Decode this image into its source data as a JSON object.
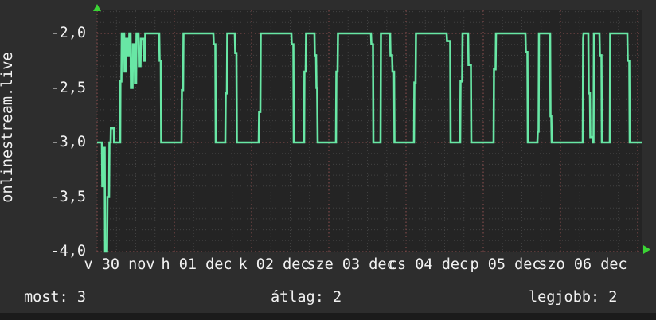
{
  "panel": {
    "y_axis_title": "onlinestream.live",
    "stats": {
      "most": {
        "label": "most",
        "value": "3",
        "text": "most: 3"
      },
      "atlag": {
        "label": "átlag",
        "value": "2",
        "text": "átlag: 2"
      },
      "legjobb": {
        "label": "legjobb",
        "value": "2",
        "text": "legjobb: 2"
      }
    },
    "colors": {
      "outer_bg": "#2d2d2d",
      "plot_bg": "#242424",
      "bottom_bar": "#1b1b1b",
      "text": "#f2f2f2",
      "series_green": "#68e7a5",
      "axis_arrow_green": "#3bd435",
      "grid_major_red": "#8f4f4f",
      "grid_minor_gray": "#414141"
    },
    "icons": [
      "y-axis-end-arrow-icon",
      "x-axis-end-arrow-icon"
    ]
  },
  "chart_data": {
    "type": "line",
    "title": "",
    "ylabel": "onlinestream.live",
    "xlabel": "",
    "legend": "none",
    "grid": {
      "on": true,
      "y_major_step": 0.5,
      "y_minor_step": 0.1,
      "x_major_step_days": 1,
      "x_minor_step_days": 0.25
    },
    "ylim": [
      -4.0,
      -1.79
    ],
    "xlim_days": [
      0,
      7.05
    ],
    "y_ticks": {
      "values": [
        -2.0,
        -2.5,
        -3.0,
        -3.5,
        -4.0
      ],
      "labels": [
        "-2,0",
        "-2,5",
        "-3,0",
        "-3,5",
        "-4,0"
      ]
    },
    "x_ticks": {
      "labels": [
        "v 30 nov",
        "h 01 dec",
        "k 02 dec",
        "sze 03 dec",
        "cs 04 dec",
        "p 05 dec",
        "szo 06 dec"
      ],
      "day_values": [
        0,
        1,
        2,
        3,
        4,
        5,
        6
      ]
    },
    "stats": {
      "most": 3,
      "atlag": 2,
      "legjobb": 2
    },
    "series": [
      {
        "name": "onlinestream.live",
        "color": "#68e7a5",
        "points": [
          [
            0.0,
            -3
          ],
          [
            0.062,
            -3
          ],
          [
            0.067,
            -3.4
          ],
          [
            0.082,
            -3.4
          ],
          [
            0.088,
            -3.05
          ],
          [
            0.098,
            -3.05
          ],
          [
            0.103,
            -4
          ],
          [
            0.129,
            -4
          ],
          [
            0.134,
            -3.5
          ],
          [
            0.155,
            -3.5
          ],
          [
            0.16,
            -3
          ],
          [
            0.175,
            -3
          ],
          [
            0.178,
            -2.87
          ],
          [
            0.216,
            -2.87
          ],
          [
            0.22,
            -3
          ],
          [
            0.299,
            -3
          ],
          [
            0.302,
            -2.44
          ],
          [
            0.314,
            -2.44
          ],
          [
            0.32,
            -2
          ],
          [
            0.351,
            -2
          ],
          [
            0.356,
            -2.35
          ],
          [
            0.371,
            -2.35
          ],
          [
            0.376,
            -2.05
          ],
          [
            0.392,
            -2.05
          ],
          [
            0.397,
            -2.2
          ],
          [
            0.412,
            -2.2
          ],
          [
            0.418,
            -2
          ],
          [
            0.433,
            -2
          ],
          [
            0.438,
            -2.5
          ],
          [
            0.459,
            -2.5
          ],
          [
            0.464,
            -2.1
          ],
          [
            0.485,
            -2.1
          ],
          [
            0.49,
            -2.45
          ],
          [
            0.505,
            -2.45
          ],
          [
            0.51,
            -2
          ],
          [
            0.536,
            -2
          ],
          [
            0.541,
            -2.3
          ],
          [
            0.562,
            -2.3
          ],
          [
            0.567,
            -2.05
          ],
          [
            0.598,
            -2.05
          ],
          [
            0.603,
            -2.25
          ],
          [
            0.619,
            -2.25
          ],
          [
            0.624,
            -2
          ],
          [
            0.804,
            -2
          ],
          [
            0.809,
            -2.25
          ],
          [
            0.825,
            -2.25
          ],
          [
            0.83,
            -3
          ],
          [
            1.093,
            -3
          ],
          [
            1.098,
            -2.52
          ],
          [
            1.113,
            -2.52
          ],
          [
            1.119,
            -2
          ],
          [
            1.505,
            -2
          ],
          [
            1.51,
            -2.1
          ],
          [
            1.531,
            -2.1
          ],
          [
            1.536,
            -3
          ],
          [
            1.66,
            -3
          ],
          [
            1.665,
            -2.55
          ],
          [
            1.68,
            -2.55
          ],
          [
            1.686,
            -2
          ],
          [
            1.784,
            -2
          ],
          [
            1.789,
            -2.18
          ],
          [
            1.804,
            -2.18
          ],
          [
            1.809,
            -3
          ],
          [
            2.093,
            -3
          ],
          [
            2.098,
            -2.72
          ],
          [
            2.113,
            -2.72
          ],
          [
            2.119,
            -2
          ],
          [
            2.515,
            -2
          ],
          [
            2.52,
            -2.1
          ],
          [
            2.541,
            -2.1
          ],
          [
            2.546,
            -3
          ],
          [
            2.68,
            -3
          ],
          [
            2.685,
            -2.35
          ],
          [
            2.701,
            -2.35
          ],
          [
            2.706,
            -2
          ],
          [
            2.814,
            -2
          ],
          [
            2.819,
            -2.2
          ],
          [
            2.835,
            -2.2
          ],
          [
            2.84,
            -2.5
          ],
          [
            2.85,
            -2.5
          ],
          [
            2.856,
            -3
          ],
          [
            3.093,
            -3
          ],
          [
            3.098,
            -2.35
          ],
          [
            3.113,
            -2.35
          ],
          [
            3.119,
            -2
          ],
          [
            3.546,
            -2
          ],
          [
            3.552,
            -2.1
          ],
          [
            3.572,
            -2.1
          ],
          [
            3.577,
            -3
          ],
          [
            3.67,
            -3
          ],
          [
            3.675,
            -2
          ],
          [
            3.794,
            -2
          ],
          [
            3.799,
            -2.2
          ],
          [
            3.82,
            -2.2
          ],
          [
            3.825,
            -2.35
          ],
          [
            3.845,
            -2.35
          ],
          [
            3.851,
            -3
          ],
          [
            4.103,
            -3
          ],
          [
            4.108,
            -2.45
          ],
          [
            4.124,
            -2.45
          ],
          [
            4.129,
            -2
          ],
          [
            4.526,
            -2
          ],
          [
            4.531,
            -2.07
          ],
          [
            4.572,
            -2.07
          ],
          [
            4.577,
            -3
          ],
          [
            4.701,
            -3
          ],
          [
            4.706,
            -2.44
          ],
          [
            4.727,
            -2.44
          ],
          [
            4.732,
            -2
          ],
          [
            4.804,
            -2
          ],
          [
            4.809,
            -2.29
          ],
          [
            4.84,
            -2.29
          ],
          [
            4.845,
            -3
          ],
          [
            5.134,
            -3
          ],
          [
            5.139,
            -2.33
          ],
          [
            5.16,
            -2.33
          ],
          [
            5.165,
            -2
          ],
          [
            5.546,
            -2
          ],
          [
            5.552,
            -2.17
          ],
          [
            5.572,
            -2.17
          ],
          [
            5.577,
            -3
          ],
          [
            5.701,
            -3
          ],
          [
            5.706,
            -2.9
          ],
          [
            5.716,
            -2.9
          ],
          [
            5.722,
            -2
          ],
          [
            5.866,
            -2
          ],
          [
            5.871,
            -2.76
          ],
          [
            5.881,
            -2.76
          ],
          [
            5.887,
            -3
          ],
          [
            6.289,
            -3
          ],
          [
            6.294,
            -2.05
          ],
          [
            6.299,
            -2
          ],
          [
            6.361,
            -2
          ],
          [
            6.366,
            -2.55
          ],
          [
            6.381,
            -2.55
          ],
          [
            6.387,
            -2.95
          ],
          [
            6.417,
            -2.95
          ],
          [
            6.423,
            -3
          ],
          [
            6.428,
            -3
          ],
          [
            6.433,
            -2
          ],
          [
            6.505,
            -2
          ],
          [
            6.51,
            -2.2
          ],
          [
            6.531,
            -2.2
          ],
          [
            6.536,
            -3
          ],
          [
            6.639,
            -3
          ],
          [
            6.644,
            -2
          ],
          [
            6.866,
            -2
          ],
          [
            6.871,
            -2.25
          ],
          [
            6.892,
            -2.25
          ],
          [
            6.897,
            -3
          ],
          [
            7.052,
            -3
          ]
        ]
      }
    ]
  }
}
